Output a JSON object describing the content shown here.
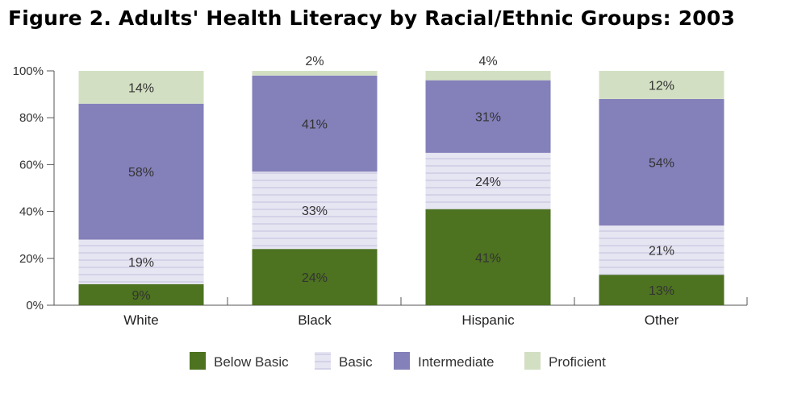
{
  "title": "Figure 2. Adults' Health Literacy by Racial/Ethnic Groups: 2003",
  "chart_data": {
    "type": "bar",
    "stacked": true,
    "categories": [
      "White",
      "Black",
      "Hispanic",
      "Other"
    ],
    "series": [
      {
        "name": "Below Basic",
        "values": [
          9,
          24,
          41,
          13
        ],
        "color": "#4d7220",
        "pattern": "solid"
      },
      {
        "name": "Basic",
        "values": [
          19,
          33,
          24,
          21
        ],
        "color": "#e4e3f1",
        "pattern": "horizontal-lines"
      },
      {
        "name": "Intermediate",
        "values": [
          58,
          41,
          31,
          54
        ],
        "color": "#8480ba",
        "pattern": "solid"
      },
      {
        "name": "Proficient",
        "values": [
          14,
          2,
          4,
          12
        ],
        "color": "#d3dfc2",
        "pattern": "solid"
      }
    ],
    "data_labels": [
      [
        "9%",
        "24%",
        "41%",
        "13%"
      ],
      [
        "19%",
        "33%",
        "24%",
        "21%"
      ],
      [
        "58%",
        "41%",
        "31%",
        "54%"
      ],
      [
        "14%",
        "2%",
        "4%",
        "12%"
      ]
    ],
    "ylim": [
      0,
      100
    ],
    "yticks": [
      "0%",
      "20%",
      "40%",
      "60%",
      "80%",
      "100%"
    ],
    "xlabel": "",
    "ylabel": "",
    "legend": "bottom",
    "grid": false
  }
}
